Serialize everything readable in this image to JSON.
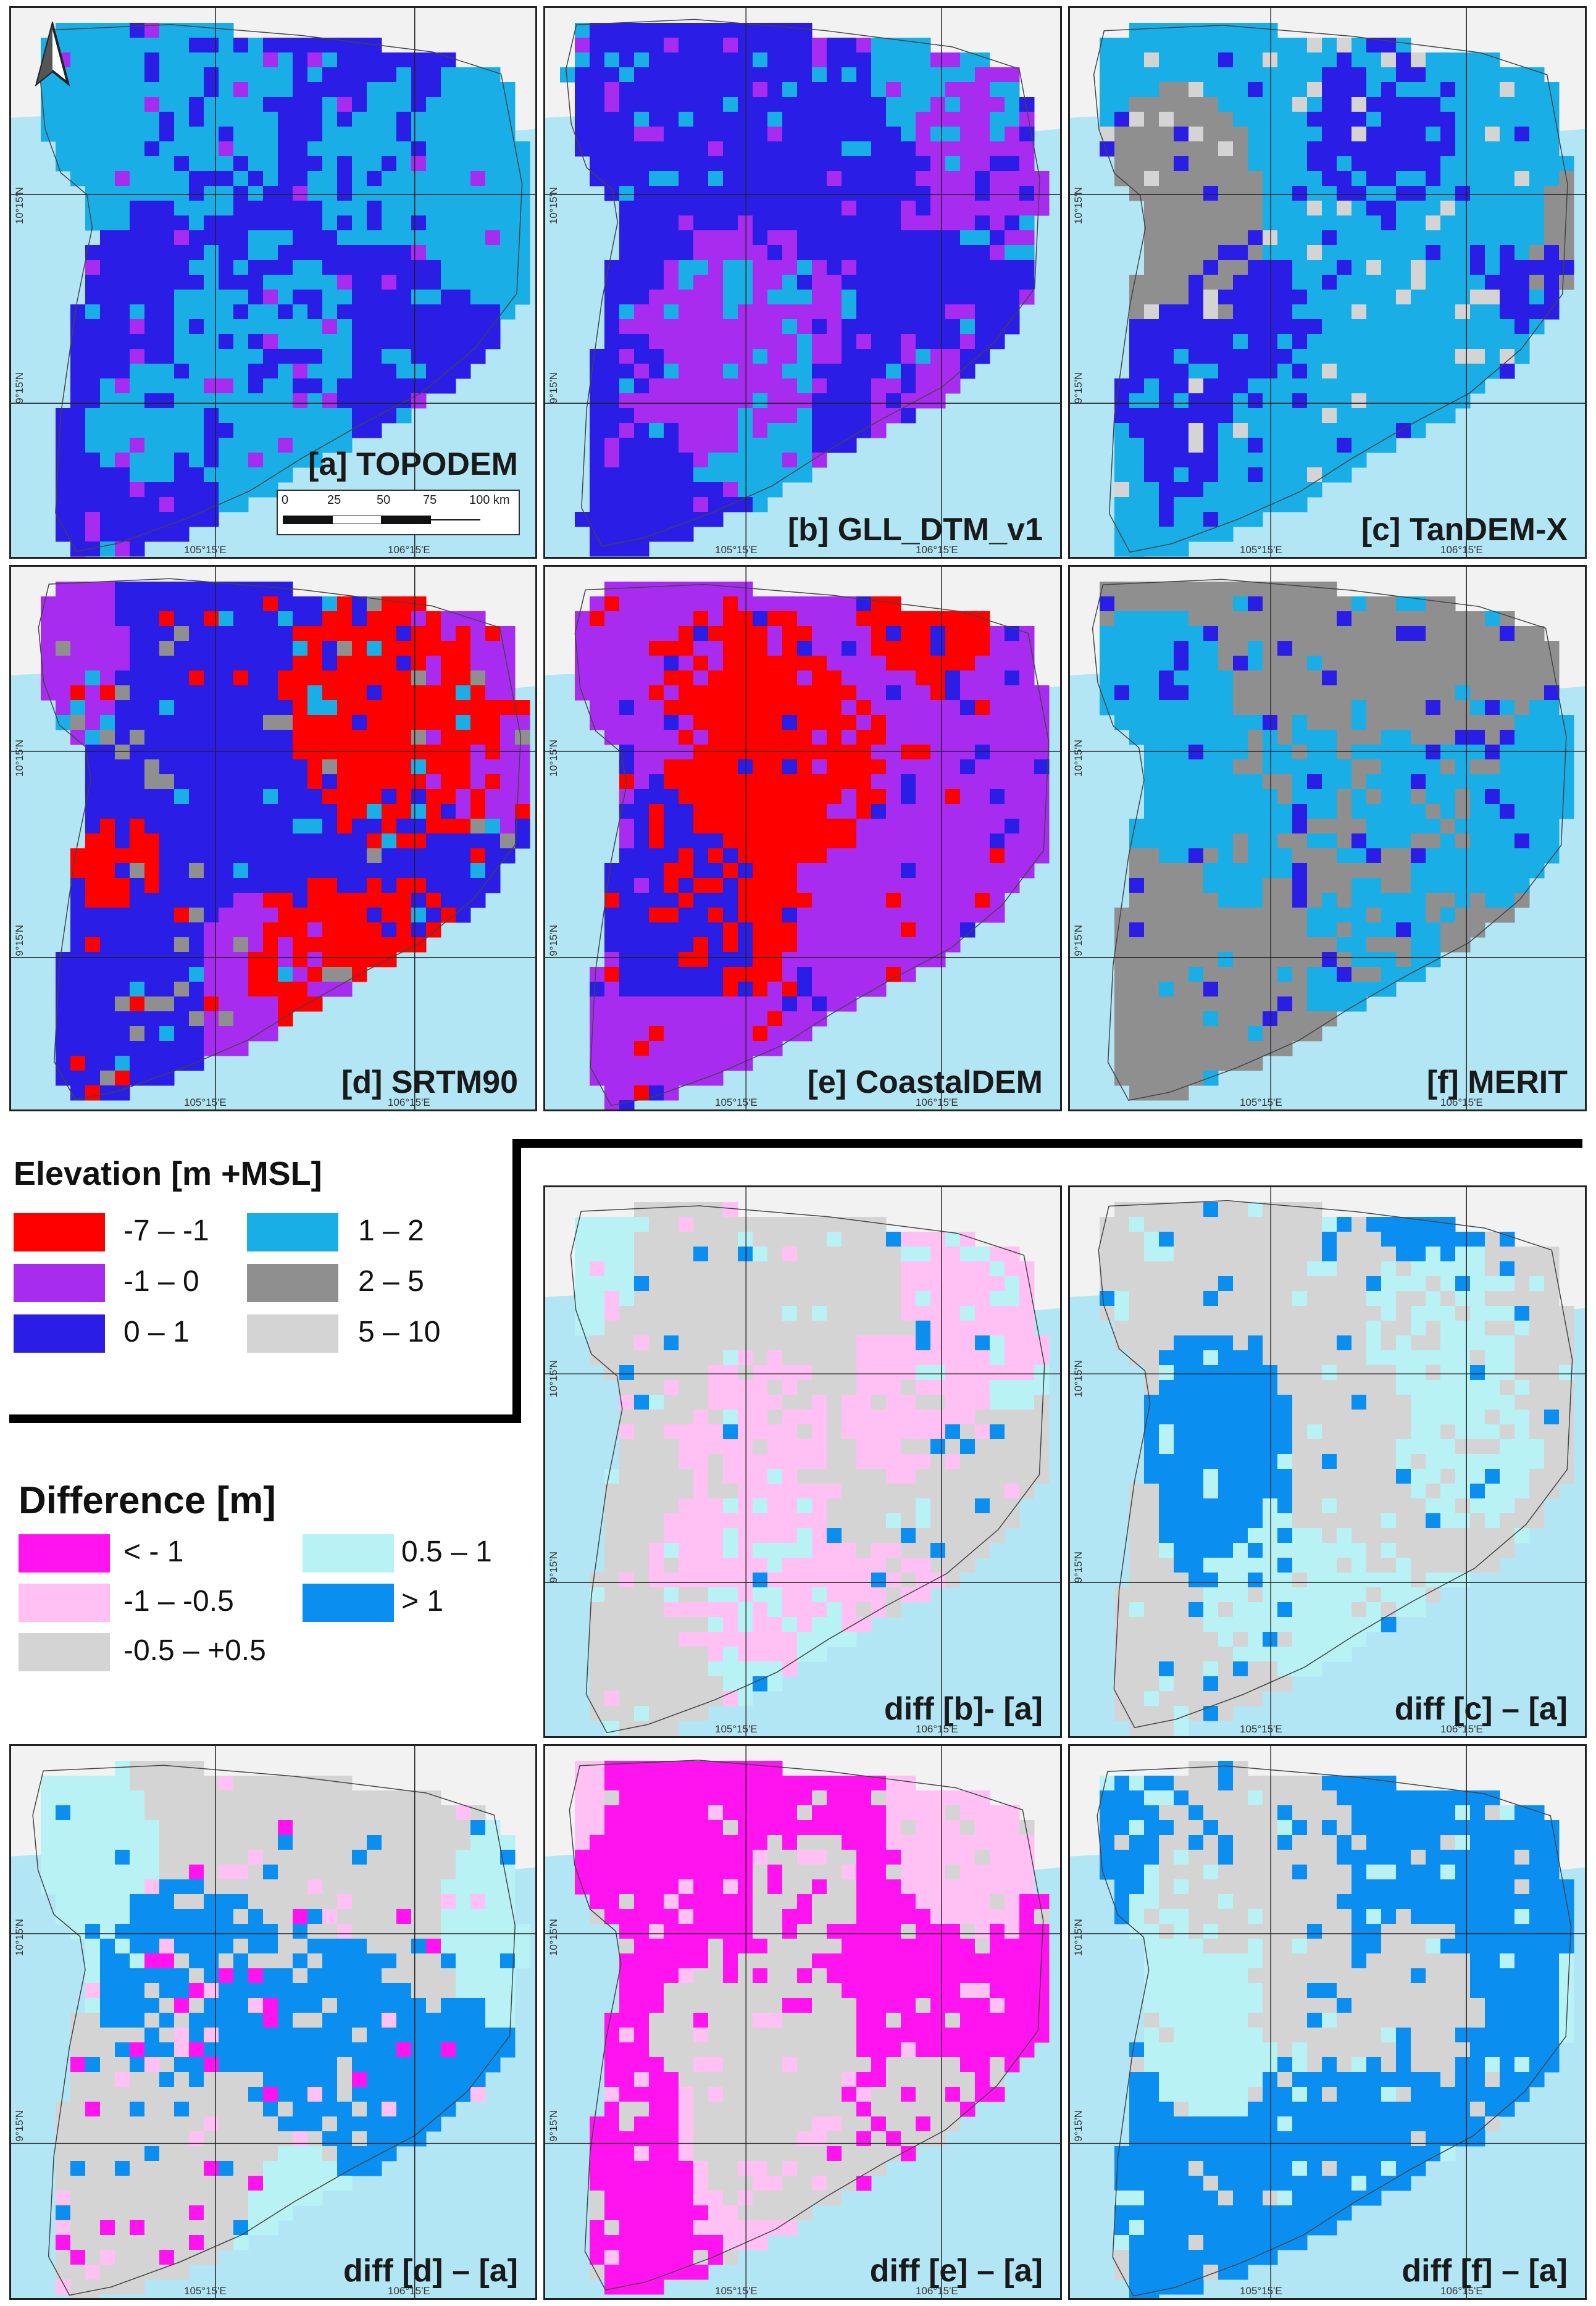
{
  "panels": [
    {
      "id": "a",
      "label": "[a] TOPODEM",
      "type": "elev",
      "dominant": "#2a1ee6",
      "secondary": "#19aee6",
      "speckle": [
        "#19aee6",
        "#a82cf0"
      ],
      "patches": []
    },
    {
      "id": "b",
      "label": "[b] GLL_DTM_v1",
      "type": "elev",
      "dominant": "#2a1ee6",
      "secondary": "#19aee6",
      "speckle": [
        "#19aee6",
        "#a82cf0"
      ],
      "patches": [
        "#a82cf0"
      ]
    },
    {
      "id": "c",
      "label": "[c] TanDEM-X",
      "type": "elev",
      "dominant": "#19aee6",
      "secondary": "#8f8f8f",
      "speckle": [
        "#2a1ee6",
        "#d4d4d4"
      ],
      "patches": [
        "#2a1ee6"
      ]
    },
    {
      "id": "d",
      "label": "[d] SRTM90",
      "type": "elev",
      "dominant": "#2a1ee6",
      "secondary": "#a82cf0",
      "speckle": [
        "#ff0000",
        "#19aee6",
        "#8f8f8f"
      ],
      "patches": [
        "#ff0000"
      ]
    },
    {
      "id": "e",
      "label": "[e] CoastalDEM",
      "type": "elev",
      "dominant": "#a82cf0",
      "secondary": "#ff0000",
      "speckle": [
        "#2a1ee6",
        "#ff0000"
      ],
      "patches": [
        "#ff0000",
        "#2a1ee6"
      ]
    },
    {
      "id": "f",
      "label": "[f] MERIT",
      "type": "elev",
      "dominant": "#8f8f8f",
      "secondary": "#19aee6",
      "speckle": [
        "#2a1ee6",
        "#19aee6"
      ],
      "patches": [
        "#19aee6"
      ]
    },
    {
      "id": "ba",
      "label": "diff [b]- [a]",
      "type": "diff",
      "dominant": "#d4d4d4",
      "secondary": "#b8f2f5",
      "speckle": [
        "#b8f2f5",
        "#0a8ff0",
        "#ffc0f4"
      ],
      "patches": [
        "#ffc0f4"
      ]
    },
    {
      "id": "ca",
      "label": "diff [c] – [a]",
      "type": "diff",
      "dominant": "#d4d4d4",
      "secondary": "#0a8ff0",
      "speckle": [
        "#b8f2f5",
        "#0a8ff0"
      ],
      "patches": [
        "#b8f2f5"
      ]
    },
    {
      "id": "da",
      "label": "diff [d] – [a]",
      "type": "diff",
      "dominant": "#d4d4d4",
      "secondary": "#b8f2f5",
      "speckle": [
        "#ff14f0",
        "#ffc0f4",
        "#0a8ff0"
      ],
      "patches": [
        "#0a8ff0"
      ]
    },
    {
      "id": "ea",
      "label": "diff [e] – [a]",
      "type": "diff",
      "dominant": "#ff14f0",
      "secondary": "#ffc0f4",
      "speckle": [
        "#d4d4d4",
        "#ffc0f4"
      ],
      "patches": [
        "#d4d4d4"
      ]
    },
    {
      "id": "fa",
      "label": "diff [f] – [a]",
      "type": "diff",
      "dominant": "#0a8ff0",
      "secondary": "#b8f2f5",
      "speckle": [
        "#d4d4d4",
        "#b8f2f5"
      ],
      "patches": [
        "#d4d4d4"
      ]
    }
  ],
  "ticks": {
    "lat_north": "10°15'N",
    "lat_south": "9°15'N",
    "lon_west": "105°15'E",
    "lon_east": "106°15'E"
  },
  "scale_bar": {
    "labels": [
      "0",
      "25",
      "50",
      "75",
      "100 km"
    ]
  },
  "legend_elevation": {
    "title": "Elevation [m +MSL]",
    "items": [
      {
        "label": "-7 – -1",
        "color": "#ff0000"
      },
      {
        "label": "1 – 2",
        "color": "#19aee6"
      },
      {
        "label": "-1 – 0",
        "color": "#a82cf0"
      },
      {
        "label": "2 – 5",
        "color": "#8f8f8f"
      },
      {
        "label": "0 – 1",
        "color": "#2a1ee6"
      },
      {
        "label": "5 – 10",
        "color": "#d4d4d4"
      }
    ]
  },
  "legend_difference": {
    "title": "Difference [m]",
    "items": [
      {
        "label": "< - 1",
        "color": "#ff14f0"
      },
      {
        "label": "0.5 – 1",
        "color": "#b8f2f5"
      },
      {
        "label": "-1 – -0.5",
        "color": "#ffc0f4"
      },
      {
        "label": "> 1",
        "color": "#0a8ff0"
      },
      {
        "label": "-0.5 – +0.5",
        "color": "#d4d4d4"
      }
    ]
  },
  "colors": {
    "sea": "#b3e6f5",
    "land_outside": "#f2f2f2"
  }
}
